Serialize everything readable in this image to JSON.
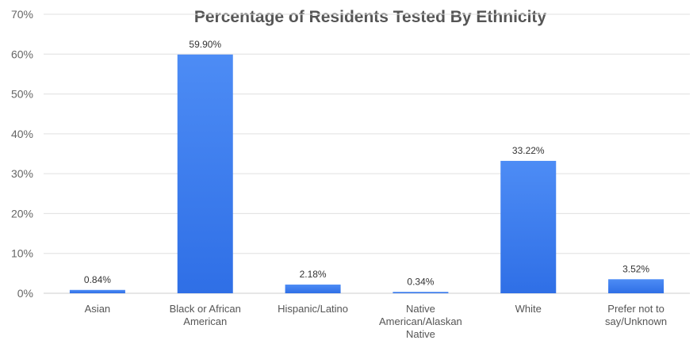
{
  "chart_data": {
    "type": "bar",
    "title": "Percentage of Residents Tested By Ethnicity",
    "xlabel": "",
    "ylabel": "",
    "categories": [
      [
        "Asian"
      ],
      [
        "Black or African",
        "American"
      ],
      [
        "Hispanic/Latino"
      ],
      [
        "Native",
        "American/Alaskan",
        "Native"
      ],
      [
        "White"
      ],
      [
        "Prefer not to",
        "say/Unknown"
      ]
    ],
    "values": [
      0.84,
      59.9,
      2.18,
      0.34,
      33.22,
      3.52
    ],
    "data_labels": [
      "0.84%",
      "59.90%",
      "2.18%",
      "0.34%",
      "33.22%",
      "3.52%"
    ],
    "ylim": [
      0,
      70
    ],
    "yticks": [
      0,
      10,
      20,
      30,
      40,
      50,
      60,
      70
    ],
    "ytick_labels": [
      "0%",
      "10%",
      "20%",
      "30%",
      "40%",
      "50%",
      "60%",
      "70%"
    ],
    "grid": true,
    "legend": "none",
    "colors": {
      "bar_top": "#4d8cf5",
      "bar_bottom": "#2f6fe6",
      "grid": "#e0e0e0"
    }
  }
}
